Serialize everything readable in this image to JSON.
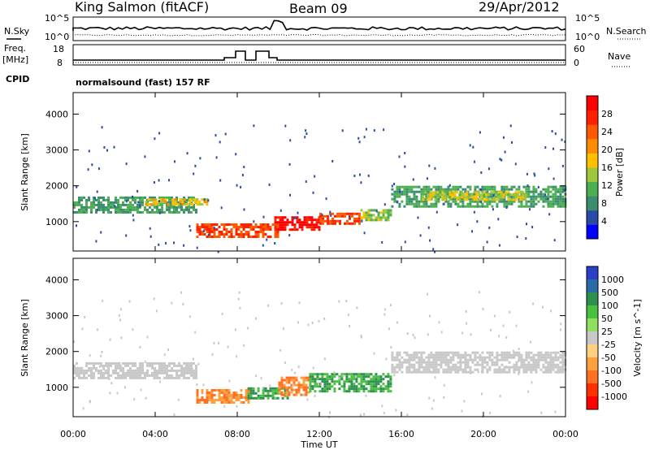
{
  "header": {
    "station": "King Salmon (fitACF)",
    "beam": "Beam 09",
    "date": "29/Apr/2012"
  },
  "noise_panel": {
    "left_label": "N.Sky",
    "right_label": "N.Search",
    "y_ticks": [
      "10^5",
      "10^0"
    ]
  },
  "freq_panel": {
    "left_label_top": "Freq.",
    "left_label_bottom": "[MHz]",
    "right_label": "Nave",
    "left_ticks": [
      "18",
      "8"
    ],
    "right_ticks": [
      "60",
      "0"
    ]
  },
  "cpid": {
    "label": "CPID",
    "value": "normalsound (fast) 157 RF"
  },
  "chart_data": [
    {
      "type": "heatmap",
      "name": "power",
      "ylabel": "Slant Range [km]",
      "ylim": [
        180,
        4600
      ],
      "y_ticks": [
        "1000",
        "2000",
        "3000",
        "4000"
      ],
      "x_ticks": [
        "00:00",
        "04:00",
        "08:00",
        "12:00",
        "16:00",
        "20:00",
        "00:00"
      ],
      "xlim_hours": [
        0,
        24
      ],
      "colorbar": {
        "label": "Power [dB]",
        "ticks": [
          "4",
          "8",
          "12",
          "16",
          "20",
          "24",
          "28"
        ],
        "colors": [
          "#0000ff",
          "#2a4aa6",
          "#3a8d6e",
          "#4caf50",
          "#a0c63c",
          "#ffc000",
          "#ff8c00",
          "#ff5a00",
          "#ff2000",
          "#ff0000"
        ]
      },
      "echo_regions": [
        {
          "t": [
            0.0,
            6.0
          ],
          "range": [
            1250,
            1700
          ],
          "power_db": 8
        },
        {
          "t": [
            3.5,
            6.5
          ],
          "range": [
            1450,
            1650
          ],
          "power_db": 16
        },
        {
          "t": [
            6.0,
            10.0
          ],
          "range": [
            550,
            950
          ],
          "power_db": 24
        },
        {
          "t": [
            9.8,
            12.0
          ],
          "range": [
            800,
            1150
          ],
          "power_db": 28
        },
        {
          "t": [
            12.0,
            14.0
          ],
          "range": [
            950,
            1250
          ],
          "power_db": 24
        },
        {
          "t": [
            14.0,
            15.5
          ],
          "range": [
            1050,
            1350
          ],
          "power_db": 12
        },
        {
          "t": [
            15.5,
            24.0
          ],
          "range": [
            1450,
            2000
          ],
          "power_db": 8
        },
        {
          "t": [
            17.0,
            22.0
          ],
          "range": [
            1600,
            1850
          ],
          "power_db": 14
        }
      ]
    },
    {
      "type": "heatmap",
      "name": "velocity",
      "ylabel": "Slant Range [km]",
      "ylim": [
        180,
        4600
      ],
      "y_ticks": [
        "1000",
        "2000",
        "3000",
        "4000"
      ],
      "x_ticks": [
        "00:00",
        "04:00",
        "08:00",
        "12:00",
        "16:00",
        "20:00",
        "00:00"
      ],
      "xlabel": "Time UT",
      "xlim_hours": [
        0,
        24
      ],
      "colorbar": {
        "label": "Velocity [m s^-1]",
        "ticks": [
          "1000",
          "500",
          "100",
          "50",
          "25",
          "-25",
          "-50",
          "-100",
          "-500",
          "-1000"
        ],
        "colors": [
          "#2a40c8",
          "#2a6aa6",
          "#2f8f4f",
          "#48c040",
          "#90e060",
          "#c8c8c8",
          "#ffd080",
          "#ffa040",
          "#ff7020",
          "#ff3000",
          "#ff0000"
        ]
      },
      "echo_regions": [
        {
          "t": [
            0.0,
            6.0
          ],
          "range": [
            1250,
            1700
          ],
          "velocity_ms": 0
        },
        {
          "t": [
            6.0,
            8.5
          ],
          "range": [
            550,
            950
          ],
          "velocity_ms": -300
        },
        {
          "t": [
            8.5,
            10.5
          ],
          "range": [
            700,
            1000
          ],
          "velocity_ms": 75
        },
        {
          "t": [
            10.0,
            11.5
          ],
          "range": [
            800,
            1300
          ],
          "velocity_ms": -300
        },
        {
          "t": [
            11.5,
            15.5
          ],
          "range": [
            900,
            1400
          ],
          "velocity_ms": 300
        },
        {
          "t": [
            15.5,
            24.0
          ],
          "range": [
            1400,
            2000
          ],
          "velocity_ms": 0
        }
      ]
    }
  ]
}
